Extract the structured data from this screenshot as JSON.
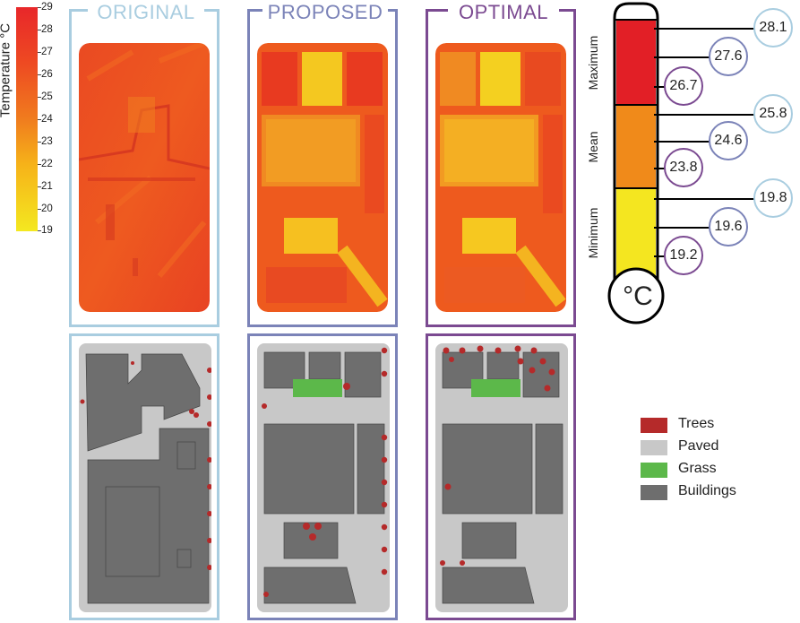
{
  "colorbar": {
    "title": "Temperature °C",
    "ticks": [
      "29",
      "28",
      "27",
      "26",
      "25",
      "24",
      "23",
      "22",
      "21",
      "20",
      "19"
    ]
  },
  "panels": {
    "original": {
      "title": "ORIGINAL",
      "color": "#a9cde0"
    },
    "proposed": {
      "title": "PROPOSED",
      "color": "#7b83b8"
    },
    "optimal": {
      "title": "OPTIMAL",
      "color": "#7b4a91"
    }
  },
  "legend": [
    {
      "label": "Trees",
      "color": "#b52a2a"
    },
    {
      "label": "Paved",
      "color": "#c8c8c8"
    },
    {
      "label": "Grass",
      "color": "#5cb84a"
    },
    {
      "label": "Buildings",
      "color": "#6e6e6e"
    }
  ],
  "thermometer": {
    "unit": "°C",
    "bands": [
      {
        "label": "Maximum",
        "color": "#e21f26"
      },
      {
        "label": "Mean",
        "color": "#f08a1a"
      },
      {
        "label": "Minimum",
        "color": "#f4e620"
      }
    ],
    "values": {
      "maximum": {
        "original": "28.1",
        "proposed": "27.6",
        "optimal": "26.7"
      },
      "mean": {
        "original": "25.8",
        "proposed": "24.6",
        "optimal": "23.8"
      },
      "minimum": {
        "original": "19.8",
        "proposed": "19.6",
        "optimal": "19.2"
      }
    }
  }
}
